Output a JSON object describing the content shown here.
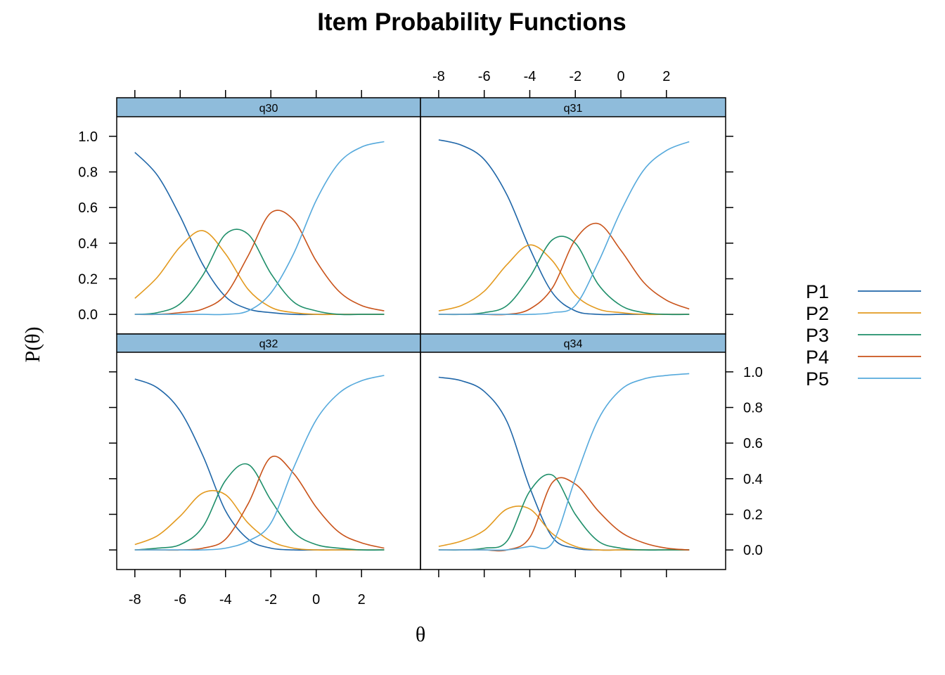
{
  "chart_data": {
    "type": "line",
    "title": "Item Probability Functions",
    "xlabel": "θ",
    "ylabel": "P(θ)",
    "xlim": [
      -8.8,
      4.6
    ],
    "ylim": [
      -0.11,
      1.11
    ],
    "x_ticks": [
      -8,
      -6,
      -4,
      -2,
      0,
      2
    ],
    "x_tick_labels": [
      "-8",
      "-6",
      "-4",
      "-2",
      "0",
      "2"
    ],
    "y_ticks": [
      0.0,
      0.2,
      0.4,
      0.6,
      0.8,
      1.0
    ],
    "y_tick_labels": [
      "0.0",
      "0.2",
      "0.4",
      "0.6",
      "0.8",
      "1.0"
    ],
    "strip_color": "#8fbcdb",
    "grid": false,
    "legend_position": "right",
    "series_names": [
      "P1",
      "P2",
      "P3",
      "P4",
      "P5"
    ],
    "series_colors": [
      "#1f66a8",
      "#e39a1f",
      "#1f8f6a",
      "#c9531a",
      "#55a9dc"
    ],
    "x_samples": [
      -8,
      -7,
      -6,
      -5,
      -4,
      -3,
      -2,
      -1,
      0,
      1,
      2,
      3
    ],
    "panels": [
      {
        "name": "q30",
        "series": [
          {
            "name": "P1",
            "values": [
              0.91,
              0.78,
              0.55,
              0.28,
              0.1,
              0.03,
              0.01,
              0.0,
              0.0,
              0.0,
              0.0,
              0.0
            ]
          },
          {
            "name": "P2",
            "values": [
              0.09,
              0.21,
              0.38,
              0.47,
              0.34,
              0.14,
              0.04,
              0.01,
              0.0,
              0.0,
              0.0,
              0.0
            ]
          },
          {
            "name": "P3",
            "values": [
              0.0,
              0.01,
              0.06,
              0.22,
              0.45,
              0.45,
              0.23,
              0.07,
              0.02,
              0.0,
              0.0,
              0.0
            ]
          },
          {
            "name": "P4",
            "values": [
              0.0,
              0.0,
              0.01,
              0.03,
              0.11,
              0.33,
              0.57,
              0.53,
              0.3,
              0.13,
              0.05,
              0.02
            ]
          },
          {
            "name": "P5",
            "values": [
              0.0,
              0.0,
              0.0,
              0.0,
              0.0,
              0.02,
              0.12,
              0.34,
              0.64,
              0.85,
              0.94,
              0.97
            ]
          }
        ]
      },
      {
        "name": "q31",
        "series": [
          {
            "name": "P1",
            "values": [
              0.98,
              0.95,
              0.87,
              0.67,
              0.37,
              0.12,
              0.02,
              0.0,
              0.0,
              0.0,
              0.0,
              0.0
            ]
          },
          {
            "name": "P2",
            "values": [
              0.02,
              0.05,
              0.13,
              0.28,
              0.39,
              0.3,
              0.11,
              0.03,
              0.01,
              0.0,
              0.0,
              0.0
            ]
          },
          {
            "name": "P3",
            "values": [
              0.0,
              0.0,
              0.01,
              0.05,
              0.21,
              0.42,
              0.4,
              0.17,
              0.05,
              0.01,
              0.0,
              0.0
            ]
          },
          {
            "name": "P4",
            "values": [
              0.0,
              0.0,
              0.0,
              0.0,
              0.03,
              0.15,
              0.42,
              0.51,
              0.36,
              0.18,
              0.08,
              0.03
            ]
          },
          {
            "name": "P5",
            "values": [
              0.0,
              0.0,
              0.0,
              0.0,
              0.0,
              0.01,
              0.05,
              0.29,
              0.58,
              0.81,
              0.92,
              0.97
            ]
          }
        ]
      },
      {
        "name": "q32",
        "series": [
          {
            "name": "P1",
            "values": [
              0.96,
              0.91,
              0.78,
              0.53,
              0.22,
              0.06,
              0.01,
              0.0,
              0.0,
              0.0,
              0.0,
              0.0
            ]
          },
          {
            "name": "P2",
            "values": [
              0.03,
              0.08,
              0.19,
              0.32,
              0.31,
              0.15,
              0.05,
              0.01,
              0.0,
              0.0,
              0.0,
              0.0
            ]
          },
          {
            "name": "P3",
            "values": [
              0.0,
              0.01,
              0.03,
              0.13,
              0.39,
              0.48,
              0.28,
              0.1,
              0.03,
              0.01,
              0.0,
              0.0
            ]
          },
          {
            "name": "P4",
            "values": [
              0.0,
              0.0,
              0.0,
              0.01,
              0.06,
              0.26,
              0.52,
              0.43,
              0.24,
              0.1,
              0.04,
              0.01
            ]
          },
          {
            "name": "P5",
            "values": [
              0.0,
              0.0,
              0.0,
              0.0,
              0.01,
              0.05,
              0.15,
              0.46,
              0.73,
              0.88,
              0.95,
              0.98
            ]
          }
        ]
      },
      {
        "name": "q34",
        "series": [
          {
            "name": "P1",
            "values": [
              0.97,
              0.95,
              0.89,
              0.72,
              0.35,
              0.07,
              0.01,
              0.0,
              0.0,
              0.0,
              0.0,
              0.0
            ]
          },
          {
            "name": "P2",
            "values": [
              0.02,
              0.05,
              0.11,
              0.23,
              0.23,
              0.09,
              0.02,
              0.0,
              0.0,
              0.0,
              0.0,
              0.0
            ]
          },
          {
            "name": "P3",
            "values": [
              0.0,
              0.0,
              0.01,
              0.05,
              0.33,
              0.42,
              0.2,
              0.05,
              0.01,
              0.0,
              0.0,
              0.0
            ]
          },
          {
            "name": "P4",
            "values": [
              0.0,
              0.0,
              0.0,
              0.0,
              0.07,
              0.38,
              0.37,
              0.22,
              0.1,
              0.04,
              0.01,
              0.0
            ]
          },
          {
            "name": "P5",
            "values": [
              0.0,
              0.0,
              0.0,
              0.0,
              0.02,
              0.04,
              0.4,
              0.73,
              0.9,
              0.96,
              0.98,
              0.99
            ]
          }
        ]
      }
    ]
  }
}
